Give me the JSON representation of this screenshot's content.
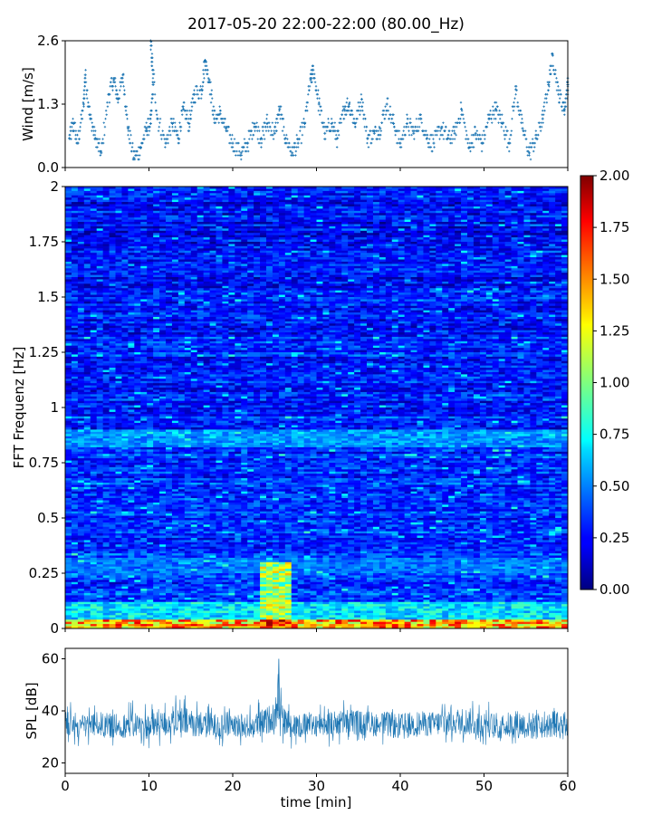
{
  "chart_data": [
    {
      "id": "wind",
      "type": "scatter",
      "title": "2017-05-20 22:00-22:00 (80.00_Hz)",
      "xlabel": "",
      "ylabel": "Wind [m/s]",
      "xlim": [
        0,
        60
      ],
      "ylim": [
        0,
        2.6
      ],
      "yticks": [
        "0.0",
        "1.3",
        "2.6"
      ],
      "color": "#1f77b4",
      "points": [
        [
          0.5,
          0.6
        ],
        [
          1.0,
          0.9
        ],
        [
          1.5,
          0.5
        ],
        [
          2.2,
          1.3
        ],
        [
          2.4,
          1.9
        ],
        [
          3.0,
          1.0
        ],
        [
          3.6,
          0.6
        ],
        [
          4.3,
          0.3
        ],
        [
          5.2,
          1.5
        ],
        [
          5.8,
          1.8
        ],
        [
          6.3,
          1.4
        ],
        [
          6.9,
          1.9
        ],
        [
          7.5,
          0.8
        ],
        [
          8.2,
          0.2
        ],
        [
          9.0,
          0.4
        ],
        [
          9.7,
          0.8
        ],
        [
          10.2,
          0.9
        ],
        [
          10.5,
          1.7
        ],
        [
          10.2,
          2.6
        ],
        [
          11.0,
          1.0
        ],
        [
          12.0,
          0.5
        ],
        [
          12.8,
          0.9
        ],
        [
          13.5,
          0.6
        ],
        [
          14.1,
          1.2
        ],
        [
          14.8,
          0.9
        ],
        [
          15.4,
          1.5
        ],
        [
          16.3,
          1.6
        ],
        [
          16.7,
          2.2
        ],
        [
          17.2,
          1.8
        ],
        [
          17.8,
          1.0
        ],
        [
          18.5,
          1.1
        ],
        [
          19.2,
          0.8
        ],
        [
          20.0,
          0.5
        ],
        [
          21.0,
          0.3
        ],
        [
          21.8,
          0.5
        ],
        [
          22.6,
          0.9
        ],
        [
          23.4,
          0.6
        ],
        [
          24.1,
          0.9
        ],
        [
          25.0,
          0.7
        ],
        [
          25.6,
          1.2
        ],
        [
          26.3,
          0.6
        ],
        [
          27.1,
          0.3
        ],
        [
          27.8,
          0.5
        ],
        [
          28.6,
          0.9
        ],
        [
          29.3,
          1.8
        ],
        [
          29.6,
          2.0
        ],
        [
          30.3,
          1.3
        ],
        [
          31.0,
          0.7
        ],
        [
          31.8,
          0.9
        ],
        [
          32.5,
          0.6
        ],
        [
          33.3,
          1.2
        ],
        [
          33.9,
          1.3
        ],
        [
          34.6,
          0.9
        ],
        [
          35.4,
          1.4
        ],
        [
          36.1,
          0.6
        ],
        [
          36.9,
          0.7
        ],
        [
          37.6,
          0.8
        ],
        [
          38.4,
          1.3
        ],
        [
          39.2,
          0.9
        ],
        [
          40.0,
          0.5
        ],
        [
          40.8,
          0.9
        ],
        [
          41.6,
          0.7
        ],
        [
          42.4,
          1.0
        ],
        [
          43.2,
          0.6
        ],
        [
          44.0,
          0.5
        ],
        [
          44.9,
          0.8
        ],
        [
          45.7,
          0.6
        ],
        [
          46.5,
          0.7
        ],
        [
          47.3,
          1.2
        ],
        [
          48.2,
          0.4
        ],
        [
          49.0,
          0.7
        ],
        [
          49.8,
          0.5
        ],
        [
          50.6,
          1.0
        ],
        [
          51.4,
          1.2
        ],
        [
          52.2,
          0.9
        ],
        [
          53.0,
          0.5
        ],
        [
          53.8,
          1.6
        ],
        [
          54.6,
          0.8
        ],
        [
          55.4,
          0.3
        ],
        [
          56.2,
          0.6
        ],
        [
          57.0,
          1.0
        ],
        [
          57.7,
          1.7
        ],
        [
          58.2,
          2.3
        ],
        [
          58.9,
          1.5
        ],
        [
          59.6,
          1.2
        ],
        [
          60.0,
          1.7
        ]
      ]
    },
    {
      "id": "spectrogram",
      "type": "heatmap",
      "xlabel": "",
      "ylabel": "FFT Frequenz [Hz]",
      "xlim": [
        0,
        60
      ],
      "ylim": [
        0,
        2
      ],
      "yticks": [
        "0",
        "0.25",
        "0.5",
        "0.75",
        "1",
        "1.25",
        "1.5",
        "1.75",
        "2"
      ],
      "colorscale": "jet",
      "colorbar": {
        "range": [
          0,
          2
        ],
        "ticks": [
          "0.00",
          "0.25",
          "0.50",
          "0.75",
          "1.00",
          "1.25",
          "1.50",
          "1.75",
          "2.00"
        ]
      },
      "features": [
        {
          "x": [
            0,
            60
          ],
          "y": [
            0,
            0.04
          ],
          "value": 1.8
        },
        {
          "x": [
            0,
            60
          ],
          "y": [
            0.04,
            0.12
          ],
          "value": 0.9
        },
        {
          "x": [
            23,
            27
          ],
          "y": [
            0,
            0.3
          ],
          "value": 1.4
        },
        {
          "x": [
            23,
            27
          ],
          "y": [
            0,
            0.04
          ],
          "value": 2.0
        },
        {
          "x": [
            0,
            60
          ],
          "y": [
            0.25,
            0.32
          ],
          "value": 0.6
        },
        {
          "x": [
            0,
            60
          ],
          "y": [
            0.82,
            0.9
          ],
          "value": 0.7
        }
      ]
    },
    {
      "id": "spl",
      "type": "line",
      "xlabel": "time [min]",
      "ylabel": "SPL [dB]",
      "xlim": [
        0,
        60
      ],
      "ylim": [
        16,
        64
      ],
      "yticks": [
        "20",
        "40",
        "60"
      ],
      "xticks": [
        "0",
        "10",
        "20",
        "30",
        "40",
        "50",
        "60"
      ],
      "color": "#1f77b4",
      "envelope": {
        "x": [
          0,
          2,
          4,
          6,
          8,
          10,
          12,
          14,
          16,
          18,
          20,
          22,
          24,
          25,
          25.5,
          26,
          28,
          30,
          32,
          34,
          36,
          38,
          40,
          42,
          44,
          46,
          48,
          50,
          52,
          54,
          56,
          58,
          60
        ],
        "mean": [
          35,
          34,
          35,
          34,
          35,
          34,
          35,
          36,
          35,
          34,
          35,
          34,
          36,
          38,
          44,
          36,
          34,
          35,
          35,
          36,
          35,
          35,
          34,
          35,
          35,
          36,
          36,
          35,
          34,
          35,
          34,
          35,
          34
        ],
        "low": [
          26,
          25,
          27,
          26,
          26,
          25,
          27,
          27,
          26,
          25,
          26,
          26,
          27,
          28,
          30,
          26,
          25,
          26,
          26,
          27,
          27,
          26,
          25,
          26,
          27,
          27,
          27,
          26,
          25,
          26,
          25,
          26,
          25
        ],
        "high": [
          44,
          42,
          44,
          43,
          44,
          43,
          45,
          47,
          44,
          43,
          44,
          43,
          46,
          50,
          60,
          46,
          43,
          44,
          44,
          45,
          44,
          44,
          43,
          44,
          44,
          46,
          46,
          44,
          43,
          45,
          44,
          45,
          44
        ]
      }
    }
  ]
}
